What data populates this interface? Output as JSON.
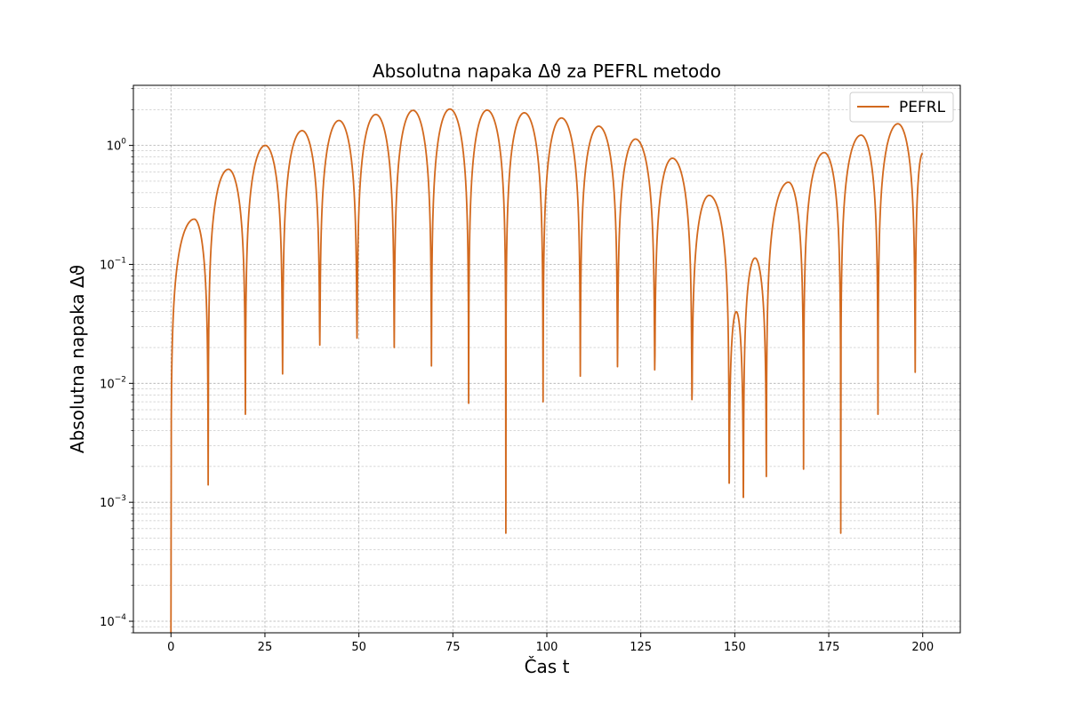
{
  "chart_data": {
    "type": "line",
    "title": "Absolutna napaka Δϑ za PEFRL metodo",
    "xlabel": "Čas t",
    "ylabel": "Absolutna napaka Δϑ",
    "xlim": [
      -10,
      210
    ],
    "ylim": [
      8e-05,
      3.2
    ],
    "yscale": "log",
    "grid": true,
    "legend_position": "top-right",
    "x_ticks": [
      0,
      25,
      50,
      75,
      100,
      125,
      150,
      175,
      200
    ],
    "x_tick_labels": [
      "0",
      "25",
      "50",
      "75",
      "100",
      "125",
      "150",
      "175",
      "200"
    ],
    "y_ticks": [
      0.0001,
      0.001,
      0.01,
      0.1,
      1
    ],
    "y_tick_labels": [
      {
        "base": "10",
        "exp": "−4"
      },
      {
        "base": "10",
        "exp": "−3"
      },
      {
        "base": "10",
        "exp": "−2"
      },
      {
        "base": "10",
        "exp": "−1"
      },
      {
        "base": "10",
        "exp": "0"
      }
    ],
    "series": [
      {
        "name": "PEFRL",
        "color": "#d2691e",
        "minima": [
          [
            0,
            8e-05
          ],
          [
            9.9,
            0.0014
          ],
          [
            19.8,
            0.0055
          ],
          [
            29.7,
            0.012
          ],
          [
            39.6,
            0.021
          ],
          [
            49.5,
            0.024
          ],
          [
            59.4,
            0.02
          ],
          [
            69.3,
            0.014
          ],
          [
            79.2,
            0.0068
          ],
          [
            89.1,
            0.00055
          ],
          [
            99.0,
            0.007
          ],
          [
            108.9,
            0.0115
          ],
          [
            118.8,
            0.0138
          ],
          [
            128.7,
            0.013
          ],
          [
            138.6,
            0.0073
          ],
          [
            148.5,
            0.00145
          ],
          [
            152.3,
            0.0011
          ],
          [
            158.4,
            0.00165
          ],
          [
            168.3,
            0.0019
          ],
          [
            178.2,
            0.00055
          ],
          [
            188.1,
            0.0055
          ],
          [
            198.0,
            0.0124
          ]
        ],
        "maxima": [
          [
            6.2,
            0.24
          ],
          [
            15.3,
            0.63
          ],
          [
            25.1,
            1.0
          ],
          [
            34.9,
            1.33
          ],
          [
            44.7,
            1.62
          ],
          [
            54.5,
            1.82
          ],
          [
            64.4,
            1.97
          ],
          [
            74.2,
            2.02
          ],
          [
            84.1,
            1.98
          ],
          [
            94.0,
            1.88
          ],
          [
            103.9,
            1.7
          ],
          [
            113.8,
            1.45
          ],
          [
            123.6,
            1.13
          ],
          [
            133.4,
            0.78
          ],
          [
            143.2,
            0.38
          ],
          [
            150.4,
            0.04
          ],
          [
            155.4,
            0.113
          ],
          [
            164.3,
            0.49
          ],
          [
            173.8,
            0.87
          ],
          [
            183.6,
            1.22
          ],
          [
            193.4,
            1.52
          ]
        ],
        "end": [
          200,
          0.86
        ]
      }
    ]
  }
}
